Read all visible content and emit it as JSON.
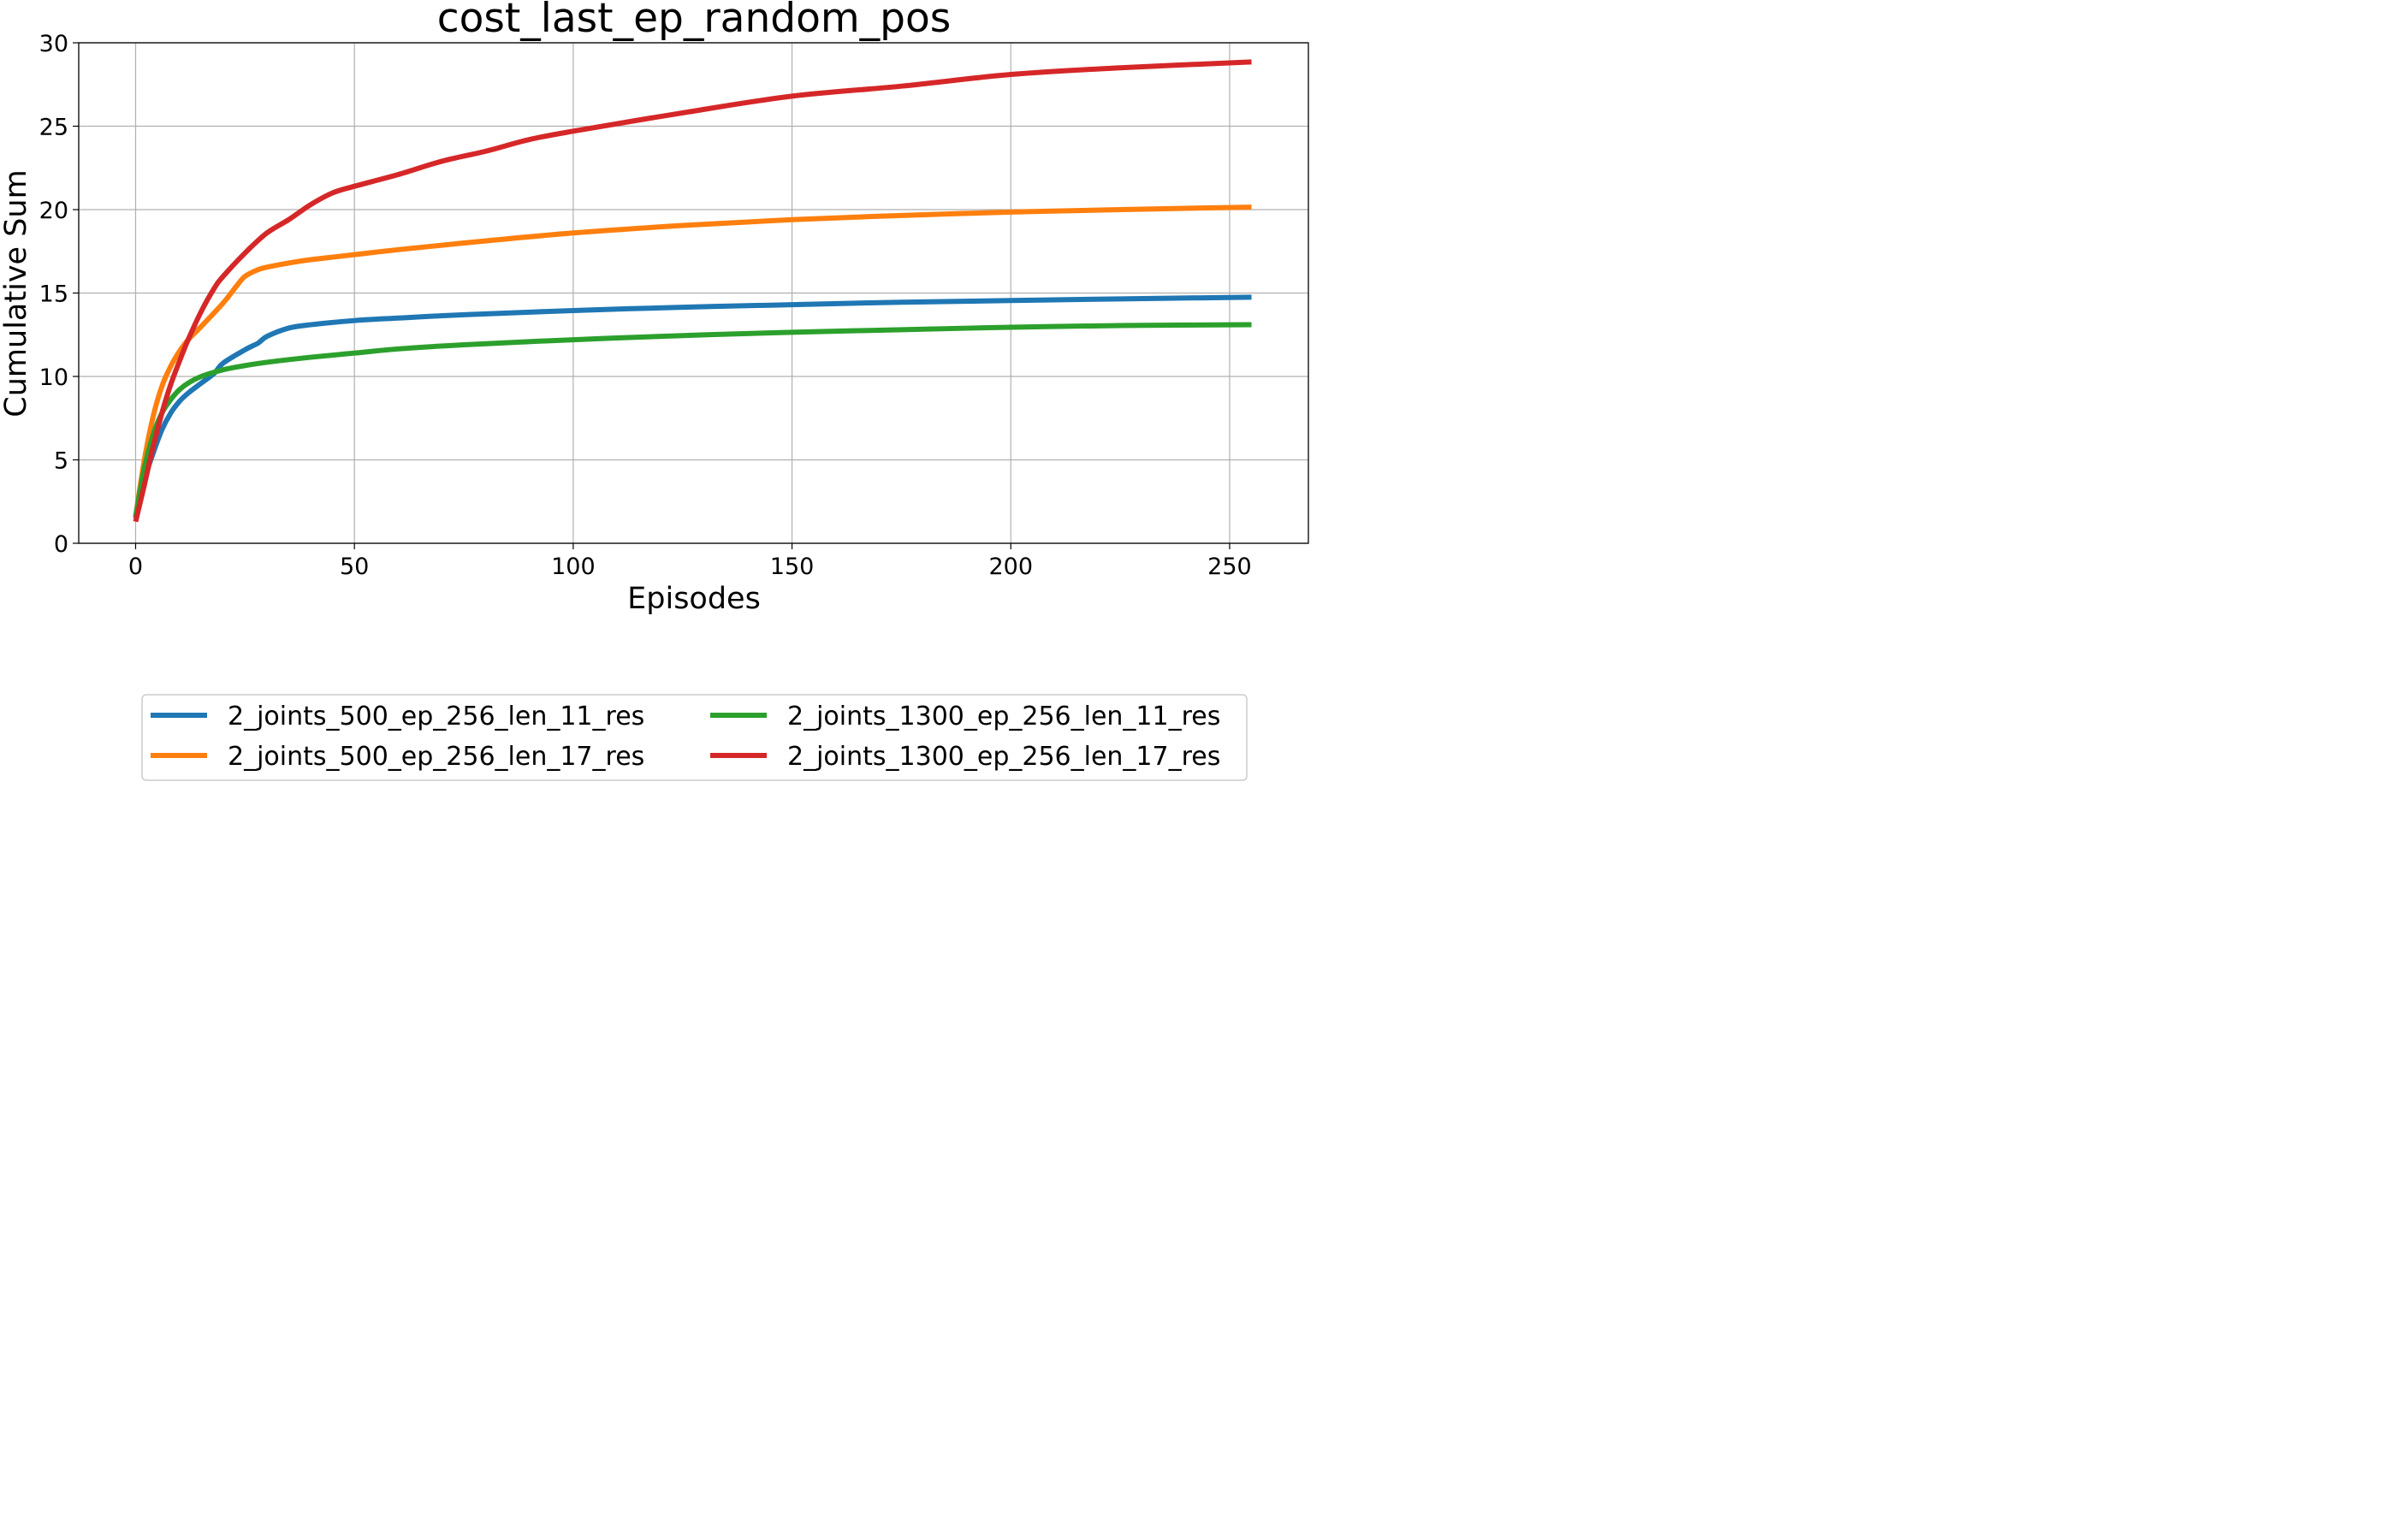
{
  "chart_data": {
    "type": "line",
    "title": "cost_last_ep_random_pos",
    "xlabel": "Episodes",
    "ylabel": "Cumulative Sum",
    "xlim": [
      -13,
      268
    ],
    "ylim": [
      0,
      30
    ],
    "xticks": [
      0,
      50,
      100,
      150,
      200,
      250
    ],
    "yticks": [
      0,
      5,
      10,
      15,
      20,
      25,
      30
    ],
    "grid": true,
    "legend_position": "bottom-center",
    "series": [
      {
        "name": "2_joints_500_ep_256_len_11_res",
        "color": "#1f77b4",
        "x": [
          0,
          2,
          4,
          6,
          8,
          10,
          12,
          15,
          18,
          20,
          25,
          28,
          30,
          35,
          40,
          50,
          60,
          75,
          100,
          125,
          150,
          175,
          200,
          225,
          255
        ],
        "y": [
          1.5,
          3.8,
          5.4,
          6.8,
          7.8,
          8.5,
          9.0,
          9.6,
          10.2,
          10.8,
          11.6,
          12.0,
          12.4,
          12.9,
          13.1,
          13.35,
          13.5,
          13.7,
          13.95,
          14.15,
          14.3,
          14.45,
          14.55,
          14.65,
          14.75
        ]
      },
      {
        "name": "2_joints_500_ep_256_len_17_res",
        "color": "#ff7f0e",
        "x": [
          0,
          2,
          4,
          6,
          8,
          10,
          12,
          15,
          20,
          23,
          25,
          28,
          30,
          35,
          40,
          50,
          60,
          75,
          100,
          125,
          150,
          175,
          200,
          225,
          255
        ],
        "y": [
          1.6,
          5.0,
          7.6,
          9.4,
          10.6,
          11.5,
          12.2,
          13.0,
          14.4,
          15.4,
          16.0,
          16.4,
          16.55,
          16.8,
          17.0,
          17.3,
          17.6,
          18.0,
          18.6,
          19.05,
          19.4,
          19.65,
          19.85,
          20.0,
          20.15
        ]
      },
      {
        "name": "2_joints_1300_ep_256_len_11_res",
        "color": "#2ca02c",
        "x": [
          0,
          2,
          4,
          6,
          8,
          10,
          12,
          15,
          20,
          25,
          30,
          40,
          50,
          60,
          75,
          100,
          125,
          150,
          175,
          200,
          225,
          255
        ],
        "y": [
          1.6,
          4.5,
          6.5,
          7.8,
          8.6,
          9.2,
          9.6,
          10.0,
          10.4,
          10.65,
          10.85,
          11.15,
          11.4,
          11.65,
          11.9,
          12.2,
          12.45,
          12.65,
          12.8,
          12.95,
          13.05,
          13.1
        ]
      },
      {
        "name": "2_joints_1300_ep_256_len_17_res",
        "color": "#d62728",
        "x": [
          0,
          2,
          4,
          6,
          8,
          10,
          12,
          15,
          18,
          20,
          25,
          30,
          35,
          40,
          45,
          50,
          60,
          70,
          80,
          90,
          100,
          125,
          150,
          175,
          200,
          225,
          255
        ],
        "y": [
          1.3,
          3.5,
          5.8,
          7.8,
          9.5,
          10.9,
          12.2,
          13.9,
          15.3,
          16.0,
          17.4,
          18.6,
          19.4,
          20.3,
          21.0,
          21.4,
          22.1,
          22.9,
          23.5,
          24.2,
          24.7,
          25.8,
          26.8,
          27.4,
          28.1,
          28.5,
          28.85
        ]
      }
    ]
  }
}
